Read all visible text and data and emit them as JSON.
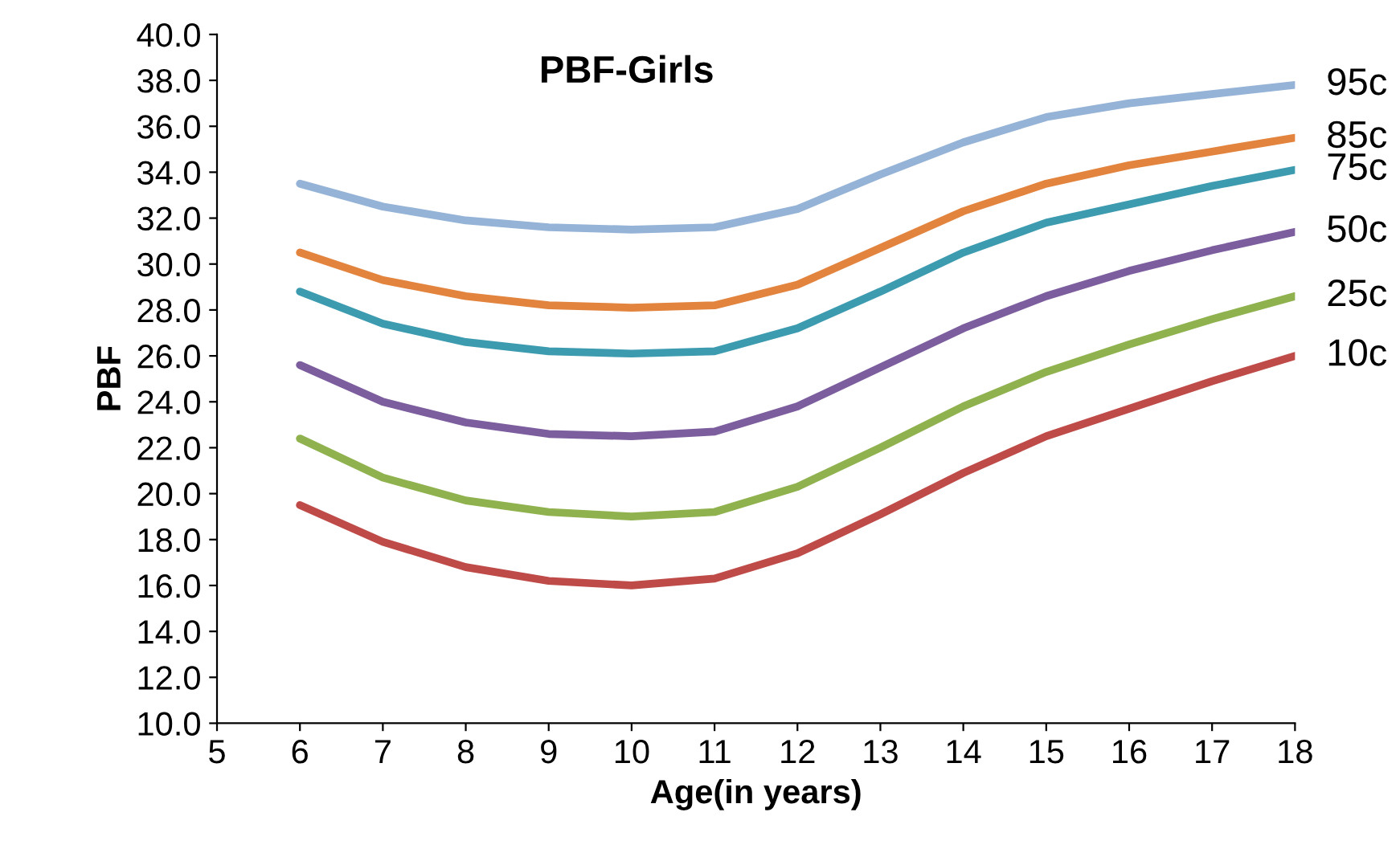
{
  "chart_data": {
    "type": "line",
    "title": "PBF-Girls",
    "xlabel": "Age(in years)",
    "ylabel": "PBF",
    "x": [
      6,
      7,
      8,
      9,
      10,
      11,
      12,
      13,
      14,
      15,
      16,
      17,
      18
    ],
    "series": [
      {
        "name": "95c",
        "color": "#95b3d7",
        "values": [
          33.5,
          32.5,
          31.9,
          31.6,
          31.5,
          31.6,
          32.4,
          33.9,
          35.3,
          36.4,
          37.0,
          37.4,
          37.8
        ]
      },
      {
        "name": "85c",
        "color": "#e3843e",
        "values": [
          30.5,
          29.3,
          28.6,
          28.2,
          28.1,
          28.2,
          29.1,
          30.7,
          32.3,
          33.5,
          34.3,
          34.9,
          35.5
        ]
      },
      {
        "name": "75c",
        "color": "#3d9bb0",
        "values": [
          28.8,
          27.4,
          26.6,
          26.2,
          26.1,
          26.2,
          27.2,
          28.8,
          30.5,
          31.8,
          32.6,
          33.4,
          34.1
        ]
      },
      {
        "name": "50c",
        "color": "#7c5e9e",
        "values": [
          25.6,
          24.0,
          23.1,
          22.6,
          22.5,
          22.7,
          23.8,
          25.5,
          27.2,
          28.6,
          29.7,
          30.6,
          31.4
        ]
      },
      {
        "name": "25c",
        "color": "#8fb24e",
        "values": [
          22.4,
          20.7,
          19.7,
          19.2,
          19.0,
          19.2,
          20.3,
          22.0,
          23.8,
          25.3,
          26.5,
          27.6,
          28.6
        ]
      },
      {
        "name": "10c",
        "color": "#be4b48",
        "values": [
          19.5,
          17.9,
          16.8,
          16.2,
          16.0,
          16.3,
          17.4,
          19.1,
          20.9,
          22.5,
          23.7,
          24.9,
          26.0
        ]
      }
    ],
    "xlim": [
      5,
      18
    ],
    "xticks": [
      5,
      6,
      7,
      8,
      9,
      10,
      11,
      12,
      13,
      14,
      15,
      16,
      17,
      18
    ],
    "ylim": [
      10,
      40
    ],
    "yticks": [
      {
        "value": 10,
        "label": "10.0"
      },
      {
        "value": 12,
        "label": "12.0"
      },
      {
        "value": 14,
        "label": "14.0"
      },
      {
        "value": 16,
        "label": "16.0"
      },
      {
        "value": 18,
        "label": "18.0"
      },
      {
        "value": 20,
        "label": "20.0"
      },
      {
        "value": 22,
        "label": "22.0"
      },
      {
        "value": 24,
        "label": "24.0"
      },
      {
        "value": 26,
        "label": "26.0"
      },
      {
        "value": 28,
        "label": "28.0"
      },
      {
        "value": 30,
        "label": "30.0"
      },
      {
        "value": 32,
        "label": "32.0"
      },
      {
        "value": 34,
        "label": "34.0"
      },
      {
        "value": 36,
        "label": "36.0"
      },
      {
        "value": 38,
        "label": "38.0"
      },
      {
        "value": 40,
        "label": "40.0"
      }
    ],
    "grid": false,
    "legend": false,
    "marker": "none",
    "line_style": "solid"
  }
}
